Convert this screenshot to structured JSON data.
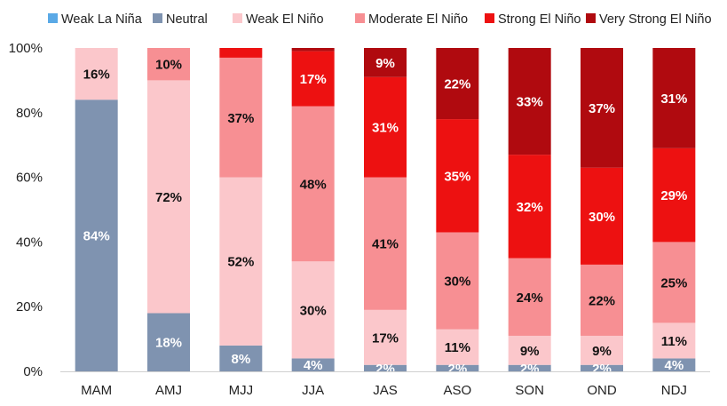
{
  "chart_data": {
    "type": "bar",
    "stacked": true,
    "percent_stacked": true,
    "categories": [
      "MAM",
      "AMJ",
      "MJJ",
      "JJA",
      "JAS",
      "ASO",
      "SON",
      "OND",
      "NDJ"
    ],
    "series": [
      {
        "name": "Weak La Niña",
        "color": "#5aa9e6",
        "label_color": "#ffffff",
        "values": [
          0,
          0,
          0,
          0,
          0,
          0,
          0,
          0,
          0
        ]
      },
      {
        "name": "Neutral",
        "color": "#7f93b0",
        "label_color": "#ffffff",
        "values": [
          84,
          18,
          8,
          4,
          2,
          2,
          2,
          2,
          4
        ]
      },
      {
        "name": "Weak El Niño",
        "color": "#fbc7cb",
        "label_color": "#111111",
        "values": [
          16,
          72,
          52,
          30,
          17,
          11,
          9,
          9,
          11
        ]
      },
      {
        "name": "Moderate El Niño",
        "color": "#f78f93",
        "label_color": "#111111",
        "values": [
          0,
          10,
          37,
          48,
          41,
          30,
          24,
          22,
          25
        ]
      },
      {
        "name": "Strong El Niño",
        "color": "#ed1111",
        "label_color": "#ffffff",
        "values": [
          0,
          0,
          3,
          17,
          31,
          35,
          32,
          30,
          29
        ]
      },
      {
        "name": "Very Strong El Niño",
        "color": "#b00a0f",
        "label_color": "#ffffff",
        "values": [
          0,
          0,
          0,
          1,
          9,
          22,
          33,
          37,
          31
        ]
      }
    ],
    "data_labels": [
      {
        "category": "MAM",
        "series": "Neutral",
        "text": "84%"
      },
      {
        "category": "MAM",
        "series": "Weak El Niño",
        "text": "16%"
      },
      {
        "category": "AMJ",
        "series": "Neutral",
        "text": "18%"
      },
      {
        "category": "AMJ",
        "series": "Weak El Niño",
        "text": "72%"
      },
      {
        "category": "AMJ",
        "series": "Moderate El Niño",
        "text": "10%"
      },
      {
        "category": "MJJ",
        "series": "Neutral",
        "text": "8%"
      },
      {
        "category": "MJJ",
        "series": "Weak El Niño",
        "text": "52%"
      },
      {
        "category": "MJJ",
        "series": "Moderate El Niño",
        "text": "37%"
      },
      {
        "category": "JJA",
        "series": "Neutral",
        "text": "4%"
      },
      {
        "category": "JJA",
        "series": "Weak El Niño",
        "text": "30%"
      },
      {
        "category": "JJA",
        "series": "Moderate El Niño",
        "text": "48%"
      },
      {
        "category": "JJA",
        "series": "Strong El Niño",
        "text": "17%"
      },
      {
        "category": "JAS",
        "series": "Neutral",
        "text": "2%"
      },
      {
        "category": "JAS",
        "series": "Weak El Niño",
        "text": "17%"
      },
      {
        "category": "JAS",
        "series": "Moderate El Niño",
        "text": "41%"
      },
      {
        "category": "JAS",
        "series": "Strong El Niño",
        "text": "31%"
      },
      {
        "category": "JAS",
        "series": "Very Strong El Niño",
        "text": "9%"
      },
      {
        "category": "ASO",
        "series": "Neutral",
        "text": "2%"
      },
      {
        "category": "ASO",
        "series": "Weak El Niño",
        "text": "11%"
      },
      {
        "category": "ASO",
        "series": "Moderate El Niño",
        "text": "30%"
      },
      {
        "category": "ASO",
        "series": "Strong El Niño",
        "text": "35%"
      },
      {
        "category": "ASO",
        "series": "Very Strong El Niño",
        "text": "22%"
      },
      {
        "category": "SON",
        "series": "Neutral",
        "text": "2%"
      },
      {
        "category": "SON",
        "series": "Weak El Niño",
        "text": "9%"
      },
      {
        "category": "SON",
        "series": "Moderate El Niño",
        "text": "24%"
      },
      {
        "category": "SON",
        "series": "Strong El Niño",
        "text": "32%"
      },
      {
        "category": "SON",
        "series": "Very Strong El Niño",
        "text": "33%"
      },
      {
        "category": "OND",
        "series": "Neutral",
        "text": "2%"
      },
      {
        "category": "OND",
        "series": "Weak El Niño",
        "text": "9%"
      },
      {
        "category": "OND",
        "series": "Moderate El Niño",
        "text": "22%"
      },
      {
        "category": "OND",
        "series": "Strong El Niño",
        "text": "30%"
      },
      {
        "category": "OND",
        "series": "Very Strong El Niño",
        "text": "37%"
      },
      {
        "category": "NDJ",
        "series": "Neutral",
        "text": "4%"
      },
      {
        "category": "NDJ",
        "series": "Weak El Niño",
        "text": "11%"
      },
      {
        "category": "NDJ",
        "series": "Moderate El Niño",
        "text": "25%"
      },
      {
        "category": "NDJ",
        "series": "Strong El Niño",
        "text": "29%"
      },
      {
        "category": "NDJ",
        "series": "Very Strong El Niño",
        "text": "31%"
      }
    ],
    "y_ticks": [
      "0%",
      "20%",
      "40%",
      "60%",
      "80%",
      "100%"
    ],
    "ylim": [
      0,
      100
    ],
    "title": "",
    "xlabel": "",
    "ylabel": "",
    "grid": false,
    "legend": "top"
  }
}
